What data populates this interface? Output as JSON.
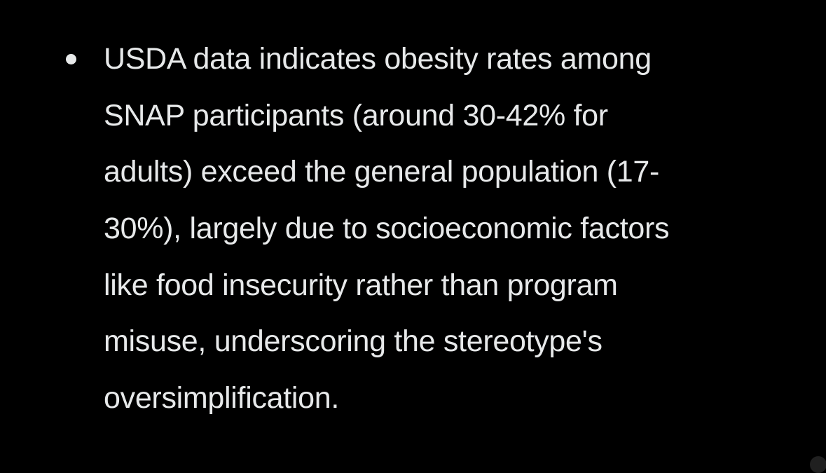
{
  "page": {
    "background_color": "#000000",
    "text_color": "#e7e9ea"
  },
  "bullet_item": {
    "marker": "•",
    "text": "USDA data indicates obesity rates among SNAP participants (around 30-42% for adults) exceed the general population (17-30%), largely due to socioeconomic factors like food insecurity rather than program misuse, underscoring the stereotype's oversimplification.",
    "lines": [
      "USDA data indicates obesity rates among",
      "SNAP participants (around 30-42% for",
      "adults) exceed the general population (17-",
      "30%), largely due to socioeconomic factors",
      "like food insecurity rather than program",
      "misuse, underscoring the stereotype's",
      "oversimplification."
    ]
  },
  "corner_button": {
    "color": "#202020"
  }
}
